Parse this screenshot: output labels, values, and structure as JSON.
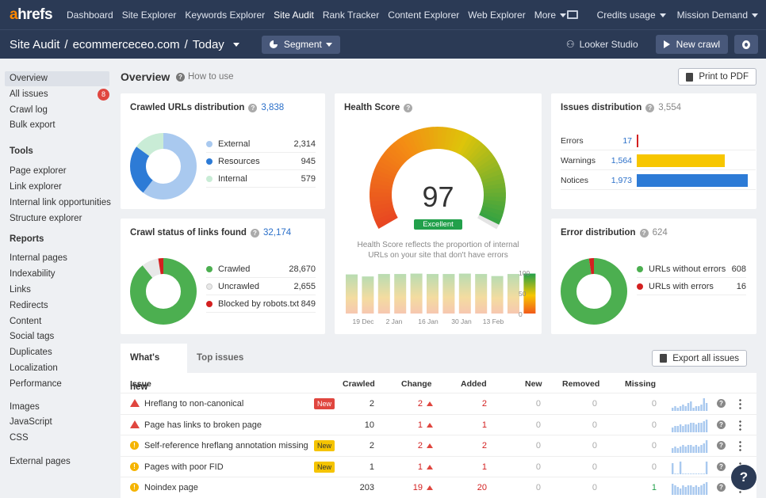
{
  "nav": {
    "logo": "ahrefs",
    "links": [
      "Dashboard",
      "Site Explorer",
      "Keywords Explorer",
      "Site Audit",
      "Rank Tracker",
      "Content Explorer",
      "Web Explorer",
      "More"
    ],
    "active": "Site Audit",
    "credits": "Credits usage",
    "account": "Mission Demand"
  },
  "subheader": {
    "section": "Site Audit",
    "project": "ecommerceceo.com",
    "date": "Today",
    "segment": "Segment",
    "looker": "Looker Studio",
    "new_crawl": "New crawl"
  },
  "sidebar": {
    "top": [
      {
        "label": "Overview",
        "selected": true
      },
      {
        "label": "All issues",
        "badge": "8"
      },
      {
        "label": "Crawl log"
      },
      {
        "label": "Bulk export"
      }
    ],
    "tools_heading": "Tools",
    "tools": [
      "Page explorer",
      "Link explorer",
      "Internal link opportunities",
      "Structure explorer"
    ],
    "reports_heading": "Reports",
    "reports": [
      "Internal pages",
      "Indexability",
      "Links",
      "Redirects",
      "Content",
      "Social tags",
      "Duplicates",
      "Localization",
      "Performance"
    ],
    "assets": [
      "Images",
      "JavaScript",
      "CSS"
    ],
    "external": [
      "External pages"
    ]
  },
  "overview": {
    "title": "Overview",
    "how_to": "How to use",
    "print": "Print to PDF"
  },
  "crawled_urls": {
    "title": "Crawled URLs distribution",
    "total": "3,838",
    "items": [
      {
        "label": "External",
        "value": "2,314",
        "color": "#a9c9ef",
        "num": 2314
      },
      {
        "label": "Resources",
        "value": "945",
        "color": "#2d7bd6",
        "num": 945
      },
      {
        "label": "Internal",
        "value": "579",
        "color": "#c9ecd6",
        "num": 579
      }
    ]
  },
  "crawl_status": {
    "title": "Crawl status of links found",
    "total": "32,174",
    "items": [
      {
        "label": "Crawled",
        "value": "28,670",
        "color": "#4caf50",
        "num": 28670
      },
      {
        "label": "Uncrawled",
        "value": "2,655",
        "color": "#e8e8e8",
        "num": 2655
      },
      {
        "label": "Blocked by robots.txt",
        "value": "849",
        "color": "#d32020",
        "num": 849
      }
    ]
  },
  "health": {
    "title": "Health Score",
    "score": "97",
    "score_value": 97,
    "label": "Excellent",
    "description": "Health Score reflects the proportion of internal URLs on your site that don't have errors",
    "history": [
      95,
      90,
      96,
      96,
      97,
      96,
      96,
      97,
      96,
      91,
      96,
      97
    ],
    "x_labels": [
      "19 Dec",
      "2 Jan",
      "16 Jan",
      "30 Jan",
      "13 Feb"
    ],
    "y_labels": [
      "100",
      "50",
      "0"
    ]
  },
  "issues_dist": {
    "title": "Issues distribution",
    "total": "3,554",
    "items": [
      {
        "label": "Errors",
        "value": "17",
        "num": 17,
        "color": "#d32020"
      },
      {
        "label": "Warnings",
        "value": "1,564",
        "num": 1564,
        "color": "#f7c600"
      },
      {
        "label": "Notices",
        "value": "1,973",
        "num": 1973,
        "color": "#2d7bd6"
      }
    ]
  },
  "error_dist": {
    "title": "Error distribution",
    "total": "624",
    "items": [
      {
        "label": "URLs without errors",
        "value": "608",
        "color": "#4caf50",
        "num": 608
      },
      {
        "label": "URLs with errors",
        "value": "16",
        "color": "#d32020",
        "num": 16
      }
    ]
  },
  "whats_new": {
    "tab_active": "What's new",
    "tab_other": "Top issues",
    "export": "Export all issues",
    "headers": [
      "Issue",
      "Crawled",
      "Change",
      "Added",
      "New",
      "Removed",
      "Missing"
    ],
    "rows": [
      {
        "type": "error",
        "issue": "Hreflang to non-canonical",
        "tag": "New",
        "tag_color": "red",
        "crawled": "2",
        "change": "2",
        "added": "2",
        "new": "0",
        "removed": "0",
        "missing": "0",
        "spark": [
          2,
          3,
          2,
          3,
          4,
          3,
          5,
          6,
          2,
          3,
          3,
          4,
          8,
          5
        ]
      },
      {
        "type": "error",
        "issue": "Page has links to broken page",
        "tag": "",
        "crawled": "10",
        "change": "1",
        "added": "1",
        "new": "0",
        "removed": "0",
        "missing": "0",
        "spark": [
          3,
          4,
          4,
          5,
          4,
          5,
          5,
          6,
          6,
          5,
          6,
          6,
          7,
          8
        ]
      },
      {
        "type": "notice",
        "issue": "Self-reference hreflang annotation missing",
        "tag": "New",
        "tag_color": "yellow",
        "crawled": "2",
        "change": "2",
        "added": "2",
        "new": "0",
        "removed": "0",
        "missing": "0",
        "spark": [
          3,
          4,
          3,
          4,
          5,
          4,
          5,
          5,
          4,
          5,
          4,
          5,
          6,
          8
        ]
      },
      {
        "type": "notice",
        "issue": "Pages with poor FID",
        "tag": "New",
        "tag_color": "yellow",
        "crawled": "1",
        "change": "1",
        "added": "1",
        "new": "0",
        "removed": "0",
        "missing": "0",
        "spark": [
          7,
          0,
          0,
          8,
          0,
          0,
          0,
          0,
          0,
          0,
          0,
          0,
          0,
          8
        ]
      },
      {
        "type": "notice",
        "issue": "Noindex page",
        "tag": "",
        "crawled": "203",
        "change": "19",
        "added": "20",
        "new": "0",
        "removed": "0",
        "missing": "1",
        "spark": [
          7,
          6,
          5,
          4,
          6,
          5,
          6,
          6,
          5,
          6,
          5,
          6,
          7,
          8
        ]
      }
    ]
  }
}
